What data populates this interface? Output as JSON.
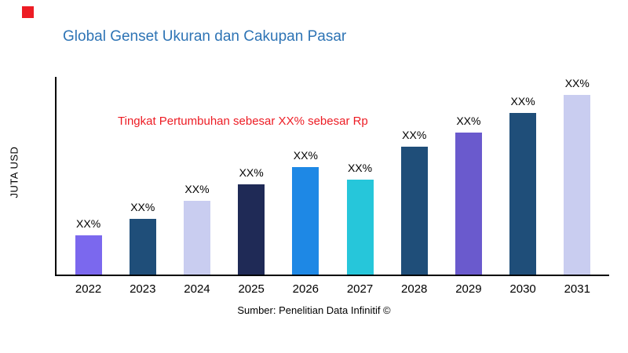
{
  "page": {
    "title": "Global Genset Ukuran dan Cakupan Pasar",
    "annotation": "Tingkat Pertumbuhan sebesar XX% sebesar Rp",
    "source": "Sumber: Penelitian Data Infinitif ©"
  },
  "colors": {
    "title_text": "#2E74B5",
    "annotation_text": "#ED1C24",
    "corner_marker": "#ED1C24",
    "axis": "#000000"
  },
  "chart_data": {
    "type": "bar",
    "title": "Global Genset Ukuran dan Cakupan Pasar",
    "categories": [
      "2022",
      "2023",
      "2024",
      "2025",
      "2026",
      "2027",
      "2028",
      "2029",
      "2030",
      "2031"
    ],
    "values": [
      22,
      31,
      41,
      50,
      60,
      53,
      71,
      79,
      90,
      100
    ],
    "bar_labels": [
      "XX%",
      "XX%",
      "XX%",
      "XX%",
      "XX%",
      "XX%",
      "XX%",
      "XX%",
      "XX%",
      "XX%"
    ],
    "bar_colors": [
      "#7B68EE",
      "#1F4E79",
      "#C9CDF0",
      "#1F2A56",
      "#1E88E5",
      "#26C6DA",
      "#1F4E79",
      "#6A5ACD",
      "#1F4E79",
      "#C9CDF0"
    ],
    "xlabel": "",
    "ylabel": "JUTA USD",
    "ylim": [
      0,
      110
    ],
    "grid": false,
    "legend": false,
    "annotation": "Tingkat Pertumbuhan sebesar XX% sebesar Rp",
    "source": "Sumber: Penelitian Data Infinitif ©"
  }
}
